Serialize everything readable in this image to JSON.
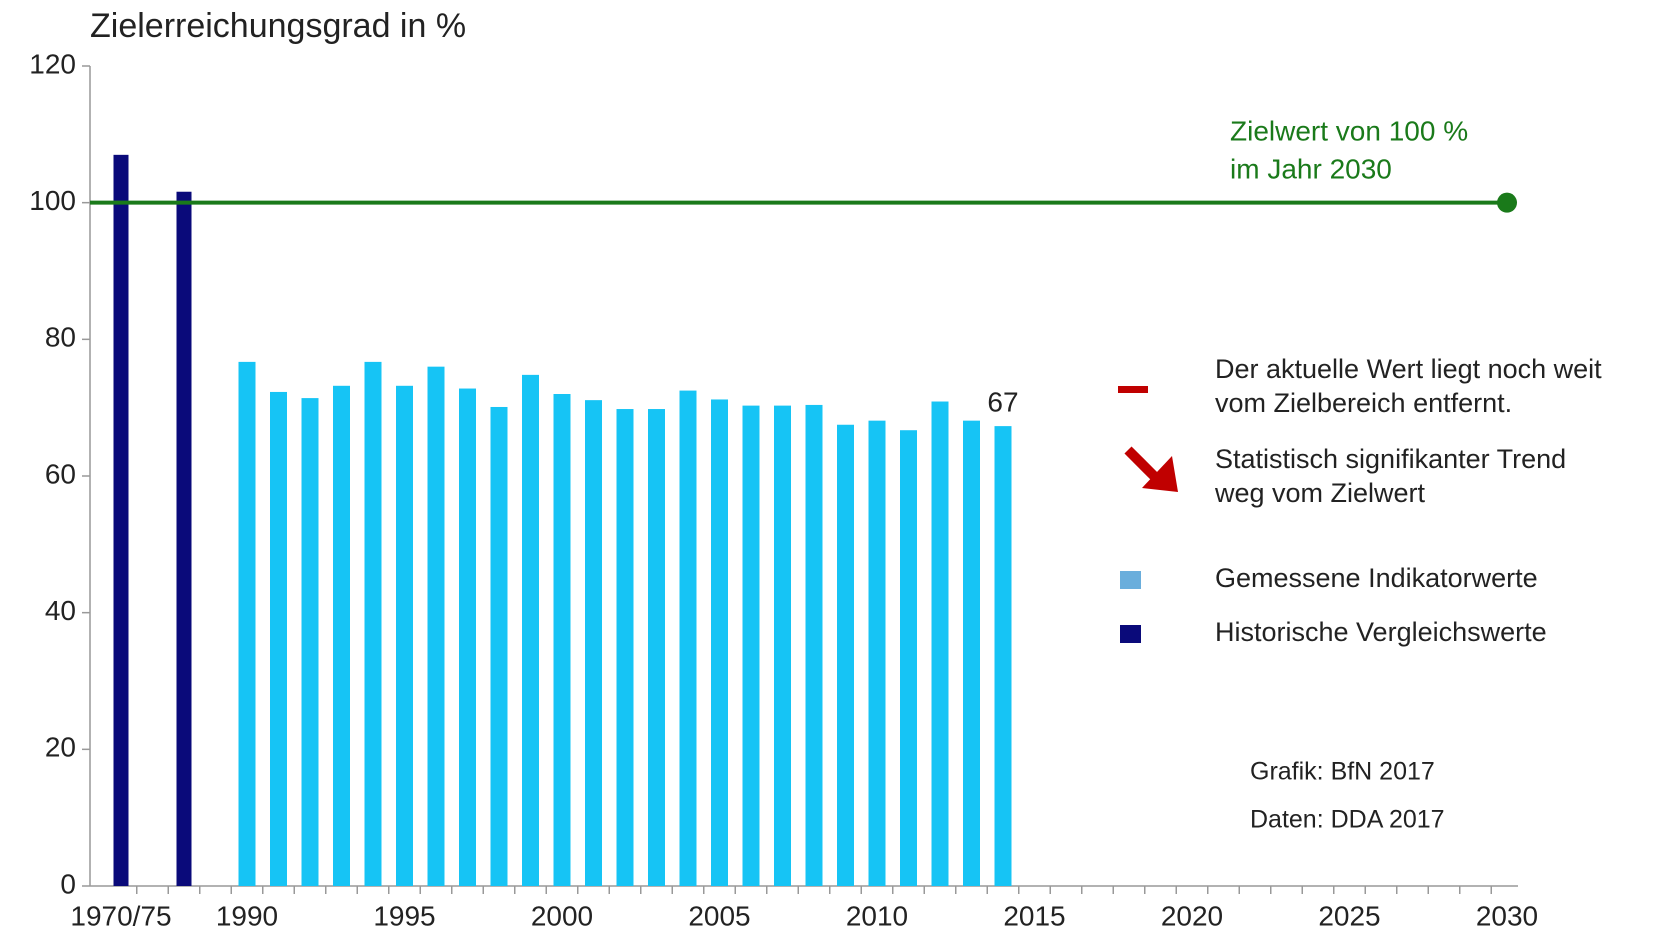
{
  "chart_data": {
    "type": "bar",
    "title": "Zielerreichungsgrad in %",
    "categories": [
      "1970/75",
      null,
      null,
      null,
      "1990",
      null,
      null,
      null,
      null,
      "1995",
      null,
      null,
      null,
      null,
      "2000",
      null,
      null,
      null,
      null,
      "2005",
      null,
      null,
      null,
      null,
      "2010",
      null,
      null,
      null,
      null,
      "2015",
      null,
      null,
      null,
      null,
      "2020",
      null,
      null,
      null,
      null,
      "2025",
      null,
      null,
      null,
      null,
      "2030"
    ],
    "series": [
      {
        "name": "Historische Vergleichswerte",
        "color": "#0a0a7a",
        "values": [
          107,
          null,
          101.6,
          null,
          null,
          null,
          null,
          null,
          null,
          null,
          null,
          null,
          null,
          null,
          null,
          null,
          null,
          null,
          null,
          null,
          null,
          null,
          null,
          null,
          null,
          null,
          null,
          null,
          null,
          null,
          null,
          null,
          null,
          null,
          null,
          null,
          null,
          null,
          null,
          null,
          null,
          null,
          null,
          null,
          null
        ]
      },
      {
        "name": "Gemessene Indikatorwerte",
        "color": "#16c4f5",
        "legend_color": "#6aaedc",
        "values": [
          null,
          null,
          null,
          null,
          76.7,
          72.3,
          71.4,
          73.2,
          76.7,
          73.2,
          76.0,
          72.8,
          70.1,
          74.8,
          72.0,
          71.1,
          69.8,
          69.8,
          72.5,
          71.2,
          70.3,
          70.3,
          70.4,
          67.5,
          68.1,
          66.7,
          70.9,
          68.1,
          67.3,
          null,
          null,
          null,
          null,
          null,
          null,
          null,
          null,
          null,
          null,
          null,
          null,
          null,
          null,
          null,
          null
        ],
        "value_labels": [
          null,
          null,
          null,
          null,
          null,
          null,
          null,
          null,
          null,
          null,
          null,
          null,
          null,
          null,
          null,
          null,
          null,
          null,
          null,
          null,
          null,
          null,
          null,
          null,
          null,
          null,
          null,
          null,
          "67",
          null,
          null,
          null,
          null,
          null,
          null,
          null,
          null,
          null,
          null,
          null,
          null,
          null,
          null,
          null,
          null
        ]
      }
    ],
    "ylim": [
      0,
      120
    ],
    "yticks": [
      0,
      20,
      40,
      60,
      80,
      100,
      120
    ],
    "grid": false,
    "target": {
      "value": 100,
      "category_index": 44,
      "color": "#1a7a1a",
      "label": [
        "Zielwert von 100 %",
        "im Jahr 2030"
      ]
    },
    "status_notes": [
      {
        "symbol": "minus",
        "color": "#c00000",
        "text": [
          "Der aktuelle Wert liegt noch weit",
          "vom Zielbereich entfernt."
        ]
      },
      {
        "symbol": "arrow-down-right",
        "color": "#c00000",
        "text": [
          "Statistisch signifikanter Trend",
          "weg vom Zielwert"
        ]
      }
    ],
    "legend_order": [
      1,
      0
    ],
    "source": [
      "Grafik: BfN 2017",
      "Daten: DDA 2017"
    ]
  }
}
